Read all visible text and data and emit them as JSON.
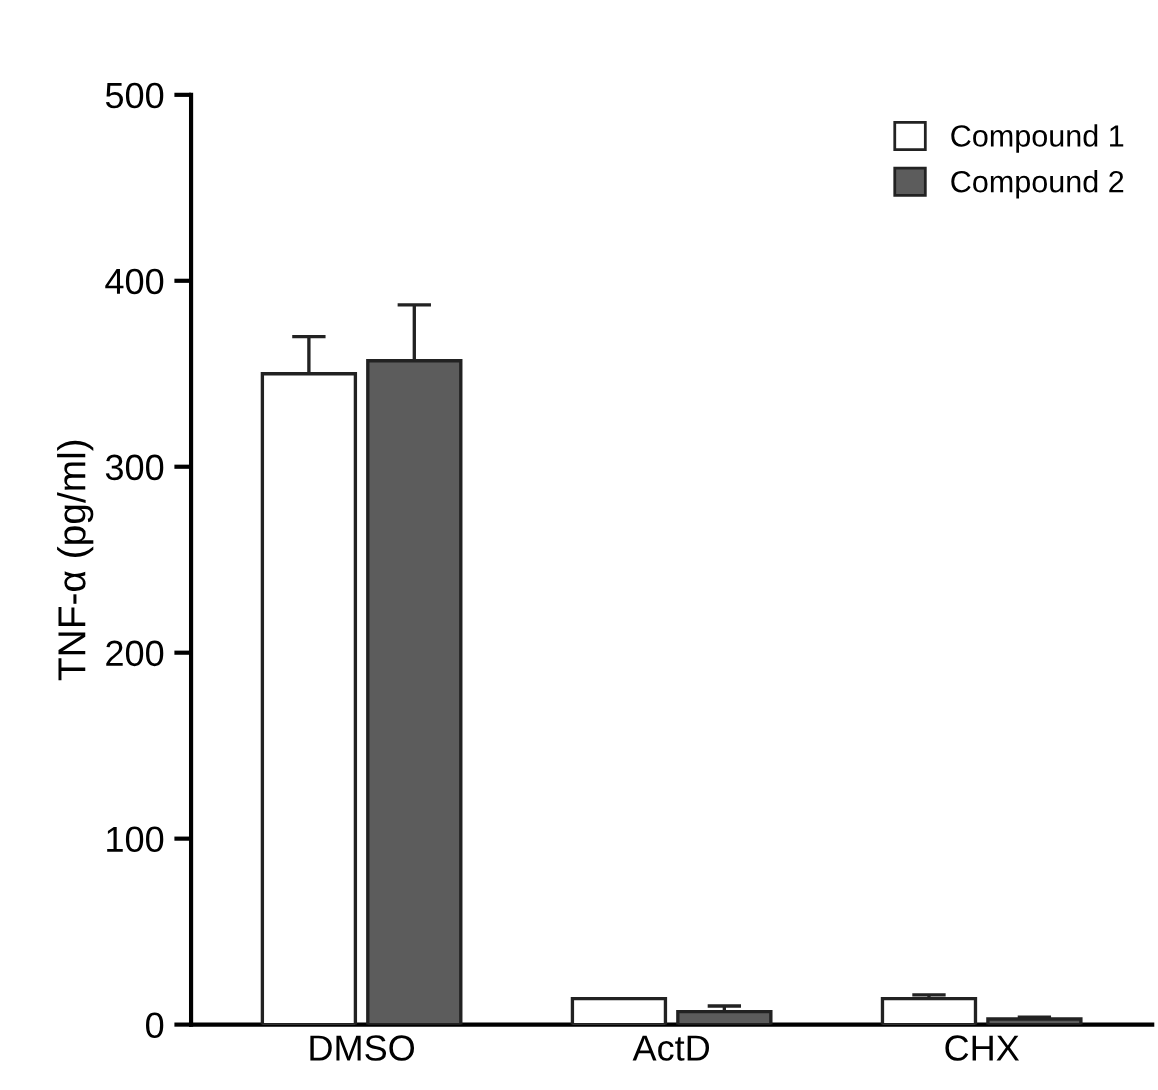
{
  "chart_data": {
    "type": "bar",
    "ylabel": "TNF-α (pg/ml)",
    "categories": [
      "DMSO",
      "ActD",
      "CHX"
    ],
    "series": [
      {
        "name": "Compound 1",
        "color": "#ffffff",
        "values": [
          350,
          14,
          14
        ],
        "errors": [
          20,
          null,
          2
        ]
      },
      {
        "name": "Compound 2",
        "color": "#5c5c5c",
        "values": [
          357,
          7,
          3
        ],
        "errors": [
          30,
          3,
          1
        ]
      }
    ],
    "ylim": [
      0,
      500
    ],
    "yticks": [
      0,
      100,
      200,
      300,
      400,
      500
    ],
    "grid": false,
    "legend": "top right"
  }
}
